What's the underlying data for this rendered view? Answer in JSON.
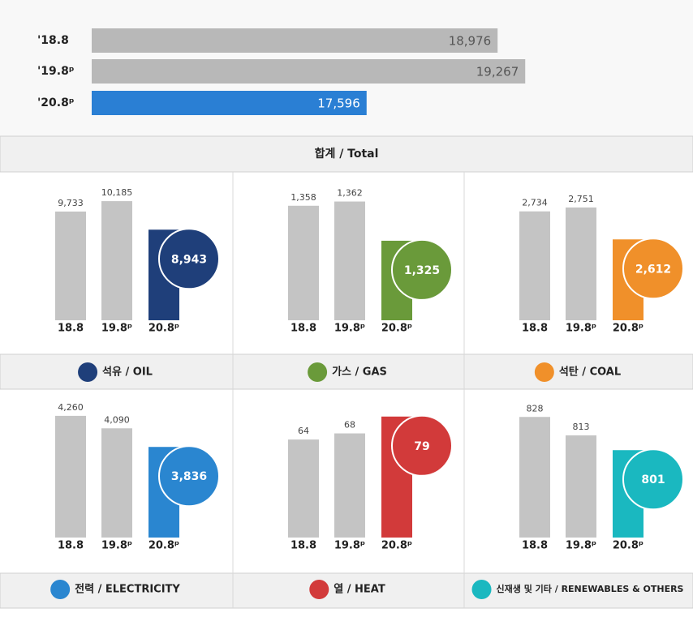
{
  "chart_data": [
    {
      "type": "barh",
      "title": "합계 / Total",
      "categories": [
        "'18.8",
        "'19.8ᵖ",
        "'20.8ᵖ"
      ],
      "values": [
        18976,
        19267,
        17596
      ],
      "value_labels": [
        "18,976",
        "19,267",
        "17,596"
      ],
      "colors": [
        "#b8b8b8",
        "#b8b8b8",
        "#2a7fd4"
      ],
      "xlim": [
        14700,
        20000
      ]
    },
    {
      "type": "bar",
      "title": "석유 / OIL",
      "categories": [
        "18.8",
        "19.8ᵖ",
        "20.8ᵖ"
      ],
      "values": [
        9733,
        10185,
        8943
      ],
      "value_labels": [
        "9,733",
        "10,185",
        "8,943"
      ],
      "colors": [
        "#c4c4c4",
        "#c4c4c4",
        "#1f3f7a"
      ],
      "ylim": [
        5000,
        11000
      ]
    },
    {
      "type": "bar",
      "title": "가스 / GAS",
      "categories": [
        "18.8",
        "19.8ᵖ",
        "20.8ᵖ"
      ],
      "values": [
        1358,
        1362,
        1325
      ],
      "value_labels": [
        "1,358",
        "1,362",
        "1,325"
      ],
      "colors": [
        "#c4c4c4",
        "#c4c4c4",
        "#6a9a3a"
      ],
      "ylim": [
        1250,
        1380
      ]
    },
    {
      "type": "bar",
      "title": "석탄 / COAL",
      "categories": [
        "18.8",
        "19.8ᵖ",
        "20.8ᵖ"
      ],
      "values": [
        2734,
        2751,
        2612
      ],
      "value_labels": [
        "2,734",
        "2,751",
        "2,612"
      ],
      "colors": [
        "#c4c4c4",
        "#c4c4c4",
        "#f0902a"
      ],
      "ylim": [
        2260,
        2860
      ]
    },
    {
      "type": "bar",
      "title": "전력 / ELECTRICITY",
      "categories": [
        "18.8",
        "19.8ᵖ",
        "20.8ᵖ"
      ],
      "values": [
        4260,
        4090,
        3836
      ],
      "value_labels": [
        "4,260",
        "4,090",
        "3,836"
      ],
      "colors": [
        "#c4c4c4",
        "#c4c4c4",
        "#2a86d0"
      ],
      "ylim": [
        2600,
        4480
      ]
    },
    {
      "type": "bar",
      "title": "열 / HEAT",
      "categories": [
        "18.8",
        "19.8ᵖ",
        "20.8ᵖ"
      ],
      "values": [
        64,
        68,
        79
      ],
      "colors": [
        "#c4c4c4",
        "#c4c4c4",
        "#d23a3a"
      ],
      "ylim": [
        0,
        90
      ]
    },
    {
      "type": "bar",
      "title": "신재생 및 기타 / RENEWABLES & OTHERS",
      "categories": [
        "18.8",
        "19.8ᵖ",
        "20.8ᵖ"
      ],
      "values": [
        828,
        813,
        801
      ],
      "colors": [
        "#c4c4c4",
        "#c4c4c4",
        "#1ab8c0"
      ],
      "ylim": [
        730,
        842
      ]
    }
  ]
}
